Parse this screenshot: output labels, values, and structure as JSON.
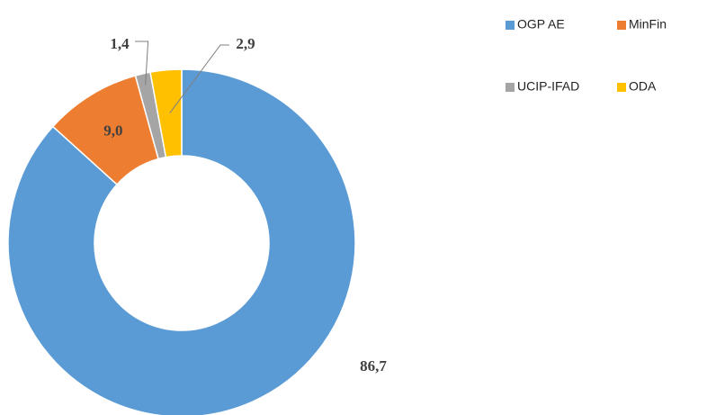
{
  "chart_data": {
    "type": "donut",
    "categories": [
      "OGP AE",
      "MinFin",
      "UCIP-IFAD",
      "ODA"
    ],
    "values": [
      86.7,
      9.0,
      1.4,
      2.9
    ],
    "value_labels": [
      "86,7",
      "9,0",
      "1,4",
      "2,9"
    ],
    "colors": [
      "#5b9bd5",
      "#ed7d31",
      "#a5a5a5",
      "#ffc000"
    ],
    "legend": "top-right"
  }
}
